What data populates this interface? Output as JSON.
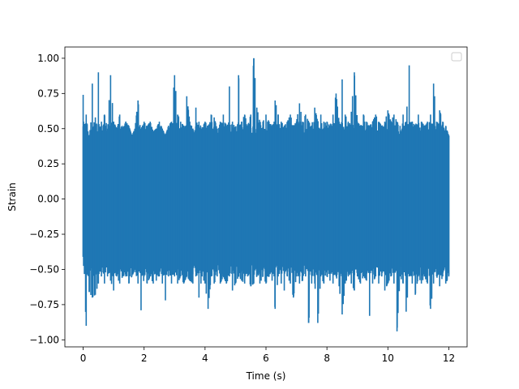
{
  "chart_data": {
    "type": "line",
    "title": "",
    "xlabel": "Time (s)",
    "ylabel": "Strain",
    "xlim": [
      -0.6,
      12.6
    ],
    "ylim": [
      -1.05,
      1.08
    ],
    "x_ticks": [
      0,
      2,
      4,
      6,
      8,
      10,
      12
    ],
    "x_tick_labels": [
      "0",
      "2",
      "4",
      "6",
      "8",
      "10",
      "12"
    ],
    "y_ticks": [
      1.0,
      0.75,
      0.5,
      0.25,
      0.0,
      -0.25,
      -0.5,
      -0.75,
      -1.0
    ],
    "y_tick_labels": [
      "1.00",
      "0.75",
      "0.50",
      "0.25",
      "0.00",
      "−0.25",
      "−0.50",
      "−0.75",
      "−1.00"
    ],
    "legend": {
      "placement": "top-right",
      "entries": []
    },
    "grid": false,
    "series": [
      {
        "color": "#1f77b4",
        "x": [
          0.0,
          0.1,
          0.2,
          0.3,
          0.4,
          0.5,
          0.6,
          0.7,
          0.8,
          0.9,
          1.0,
          1.1,
          1.2,
          1.3,
          1.4,
          1.5,
          1.6,
          1.7,
          1.8,
          1.9,
          2.0,
          2.1,
          2.2,
          2.3,
          2.4,
          2.5,
          2.6,
          2.7,
          2.8,
          2.9,
          3.0,
          3.1,
          3.2,
          3.3,
          3.4,
          3.5,
          3.6,
          3.7,
          3.8,
          3.9,
          4.0,
          4.1,
          4.2,
          4.3,
          4.4,
          4.5,
          4.6,
          4.7,
          4.8,
          4.9,
          5.0,
          5.1,
          5.2,
          5.3,
          5.4,
          5.5,
          5.6,
          5.7,
          5.8,
          5.9,
          6.0,
          6.1,
          6.2,
          6.3,
          6.4,
          6.5,
          6.6,
          6.7,
          6.8,
          6.9,
          7.0,
          7.1,
          7.2,
          7.3,
          7.4,
          7.5,
          7.6,
          7.7,
          7.8,
          7.9,
          8.0,
          8.1,
          8.2,
          8.3,
          8.4,
          8.5,
          8.6,
          8.7,
          8.8,
          8.9,
          9.0,
          9.1,
          9.2,
          9.3,
          9.4,
          9.5,
          9.6,
          9.7,
          9.8,
          9.9,
          10.0,
          10.1,
          10.2,
          10.3,
          10.4,
          10.5,
          10.6,
          10.7,
          10.8,
          10.9,
          11.0,
          11.1,
          11.2,
          11.3,
          11.4,
          11.5,
          11.6,
          11.7,
          11.8,
          11.9,
          12.0
        ],
        "y_max": [
          0.74,
          0.6,
          0.4,
          0.82,
          0.58,
          0.9,
          0.55,
          0.6,
          0.5,
          0.88,
          0.55,
          0.5,
          0.6,
          0.5,
          0.55,
          0.52,
          0.45,
          0.5,
          0.7,
          0.5,
          0.55,
          0.52,
          0.55,
          0.48,
          0.5,
          0.55,
          0.5,
          0.45,
          0.52,
          0.55,
          0.88,
          0.6,
          0.55,
          0.52,
          0.73,
          0.55,
          0.5,
          0.65,
          0.55,
          0.5,
          0.55,
          0.52,
          0.6,
          0.58,
          0.5,
          0.55,
          0.6,
          0.52,
          0.8,
          0.55,
          0.5,
          0.88,
          0.55,
          0.6,
          0.52,
          0.6,
          1.0,
          0.65,
          0.55,
          0.55,
          0.6,
          0.55,
          0.52,
          0.7,
          0.6,
          0.55,
          0.52,
          0.55,
          0.6,
          0.52,
          0.55,
          0.68,
          0.55,
          0.6,
          0.55,
          0.52,
          0.65,
          0.55,
          0.6,
          0.55,
          0.55,
          0.52,
          0.6,
          0.75,
          0.55,
          0.85,
          0.6,
          0.55,
          0.62,
          0.9,
          0.55,
          0.52,
          0.6,
          0.55,
          0.52,
          0.55,
          0.6,
          0.55,
          0.52,
          0.55,
          0.63,
          0.55,
          0.6,
          0.55,
          0.52,
          0.6,
          0.55,
          0.95,
          0.55,
          0.52,
          0.6,
          0.55,
          0.52,
          0.55,
          0.6,
          0.82,
          0.55,
          0.63,
          0.55,
          0.52,
          0.45
        ],
        "y_min": [
          -0.41,
          -0.9,
          -0.66,
          -0.7,
          -0.68,
          -0.6,
          -0.55,
          -0.6,
          -0.55,
          -0.58,
          -0.65,
          -0.55,
          -0.6,
          -0.55,
          -0.55,
          -0.6,
          -0.55,
          -0.5,
          -0.6,
          -0.79,
          -0.55,
          -0.6,
          -0.55,
          -0.6,
          -0.58,
          -0.55,
          -0.6,
          -0.72,
          -0.55,
          -0.6,
          -0.55,
          -0.6,
          -0.55,
          -0.6,
          -0.55,
          -0.58,
          -0.6,
          -0.55,
          -0.7,
          -0.55,
          -0.6,
          -0.78,
          -0.55,
          -0.6,
          -0.55,
          -0.6,
          -0.55,
          -0.6,
          -0.55,
          -0.65,
          -0.6,
          -0.55,
          -0.58,
          -0.6,
          -0.55,
          -0.62,
          -0.6,
          -0.55,
          -0.6,
          -0.55,
          -0.6,
          -0.55,
          -0.58,
          -0.78,
          -0.55,
          -0.6,
          -0.65,
          -0.55,
          -0.6,
          -0.7,
          -0.55,
          -0.6,
          -0.58,
          -0.55,
          -0.88,
          -0.6,
          -0.6,
          -0.88,
          -0.55,
          -0.6,
          -0.55,
          -0.58,
          -0.6,
          -0.55,
          -0.62,
          -0.82,
          -0.6,
          -0.55,
          -0.6,
          -0.65,
          -0.55,
          -0.6,
          -0.55,
          -0.58,
          -0.83,
          -0.6,
          -0.55,
          -0.6,
          -0.55,
          -0.65,
          -0.6,
          -0.55,
          -0.6,
          -0.94,
          -0.55,
          -0.6,
          -0.8,
          -0.55,
          -0.6,
          -0.68,
          -0.55,
          -0.6,
          -0.55,
          -0.6,
          -0.78,
          -0.6,
          -0.55,
          -0.62,
          -0.55,
          -0.6,
          -0.55
        ]
      }
    ]
  }
}
